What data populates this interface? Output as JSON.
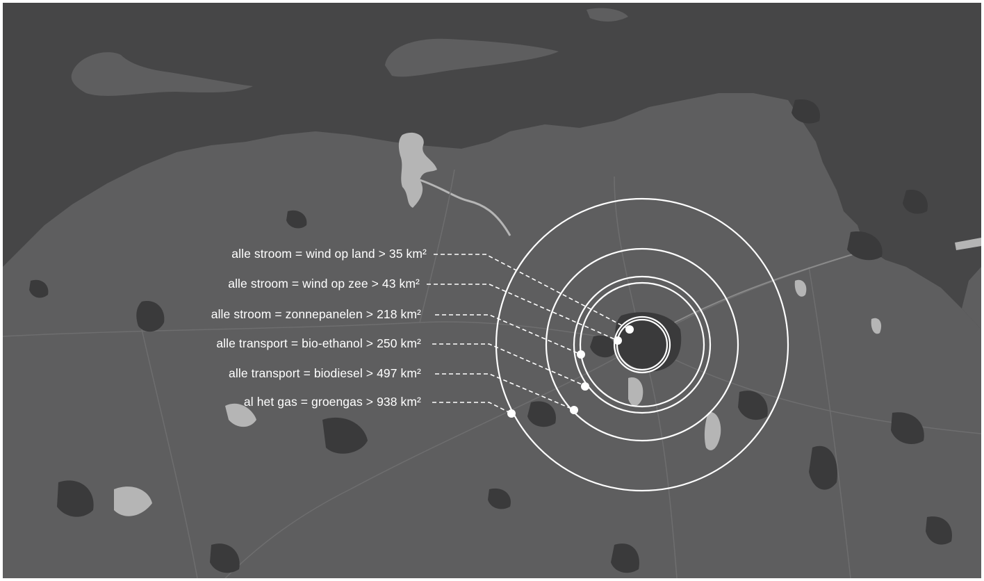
{
  "map": {
    "colors": {
      "sea": "#464647",
      "land": "#5e5e5f",
      "settlement": "#3a3a3b",
      "water": "#b5b5b5",
      "road": "#6e6e6f",
      "overlay": "#ffffff"
    }
  },
  "annotations": [
    {
      "text": "alle stroom = wind op land > 35 km²"
    },
    {
      "text": "alle stroom = wind op zee > 43 km²"
    },
    {
      "text": "alle stroom = zonnepanelen > 218 km²"
    },
    {
      "text": "alle transport = bio-ethanol > 250 km²"
    },
    {
      "text": "alle transport = biodiesel > 497 km²"
    },
    {
      "text": "al het gas = groengas > 938 km²"
    }
  ]
}
